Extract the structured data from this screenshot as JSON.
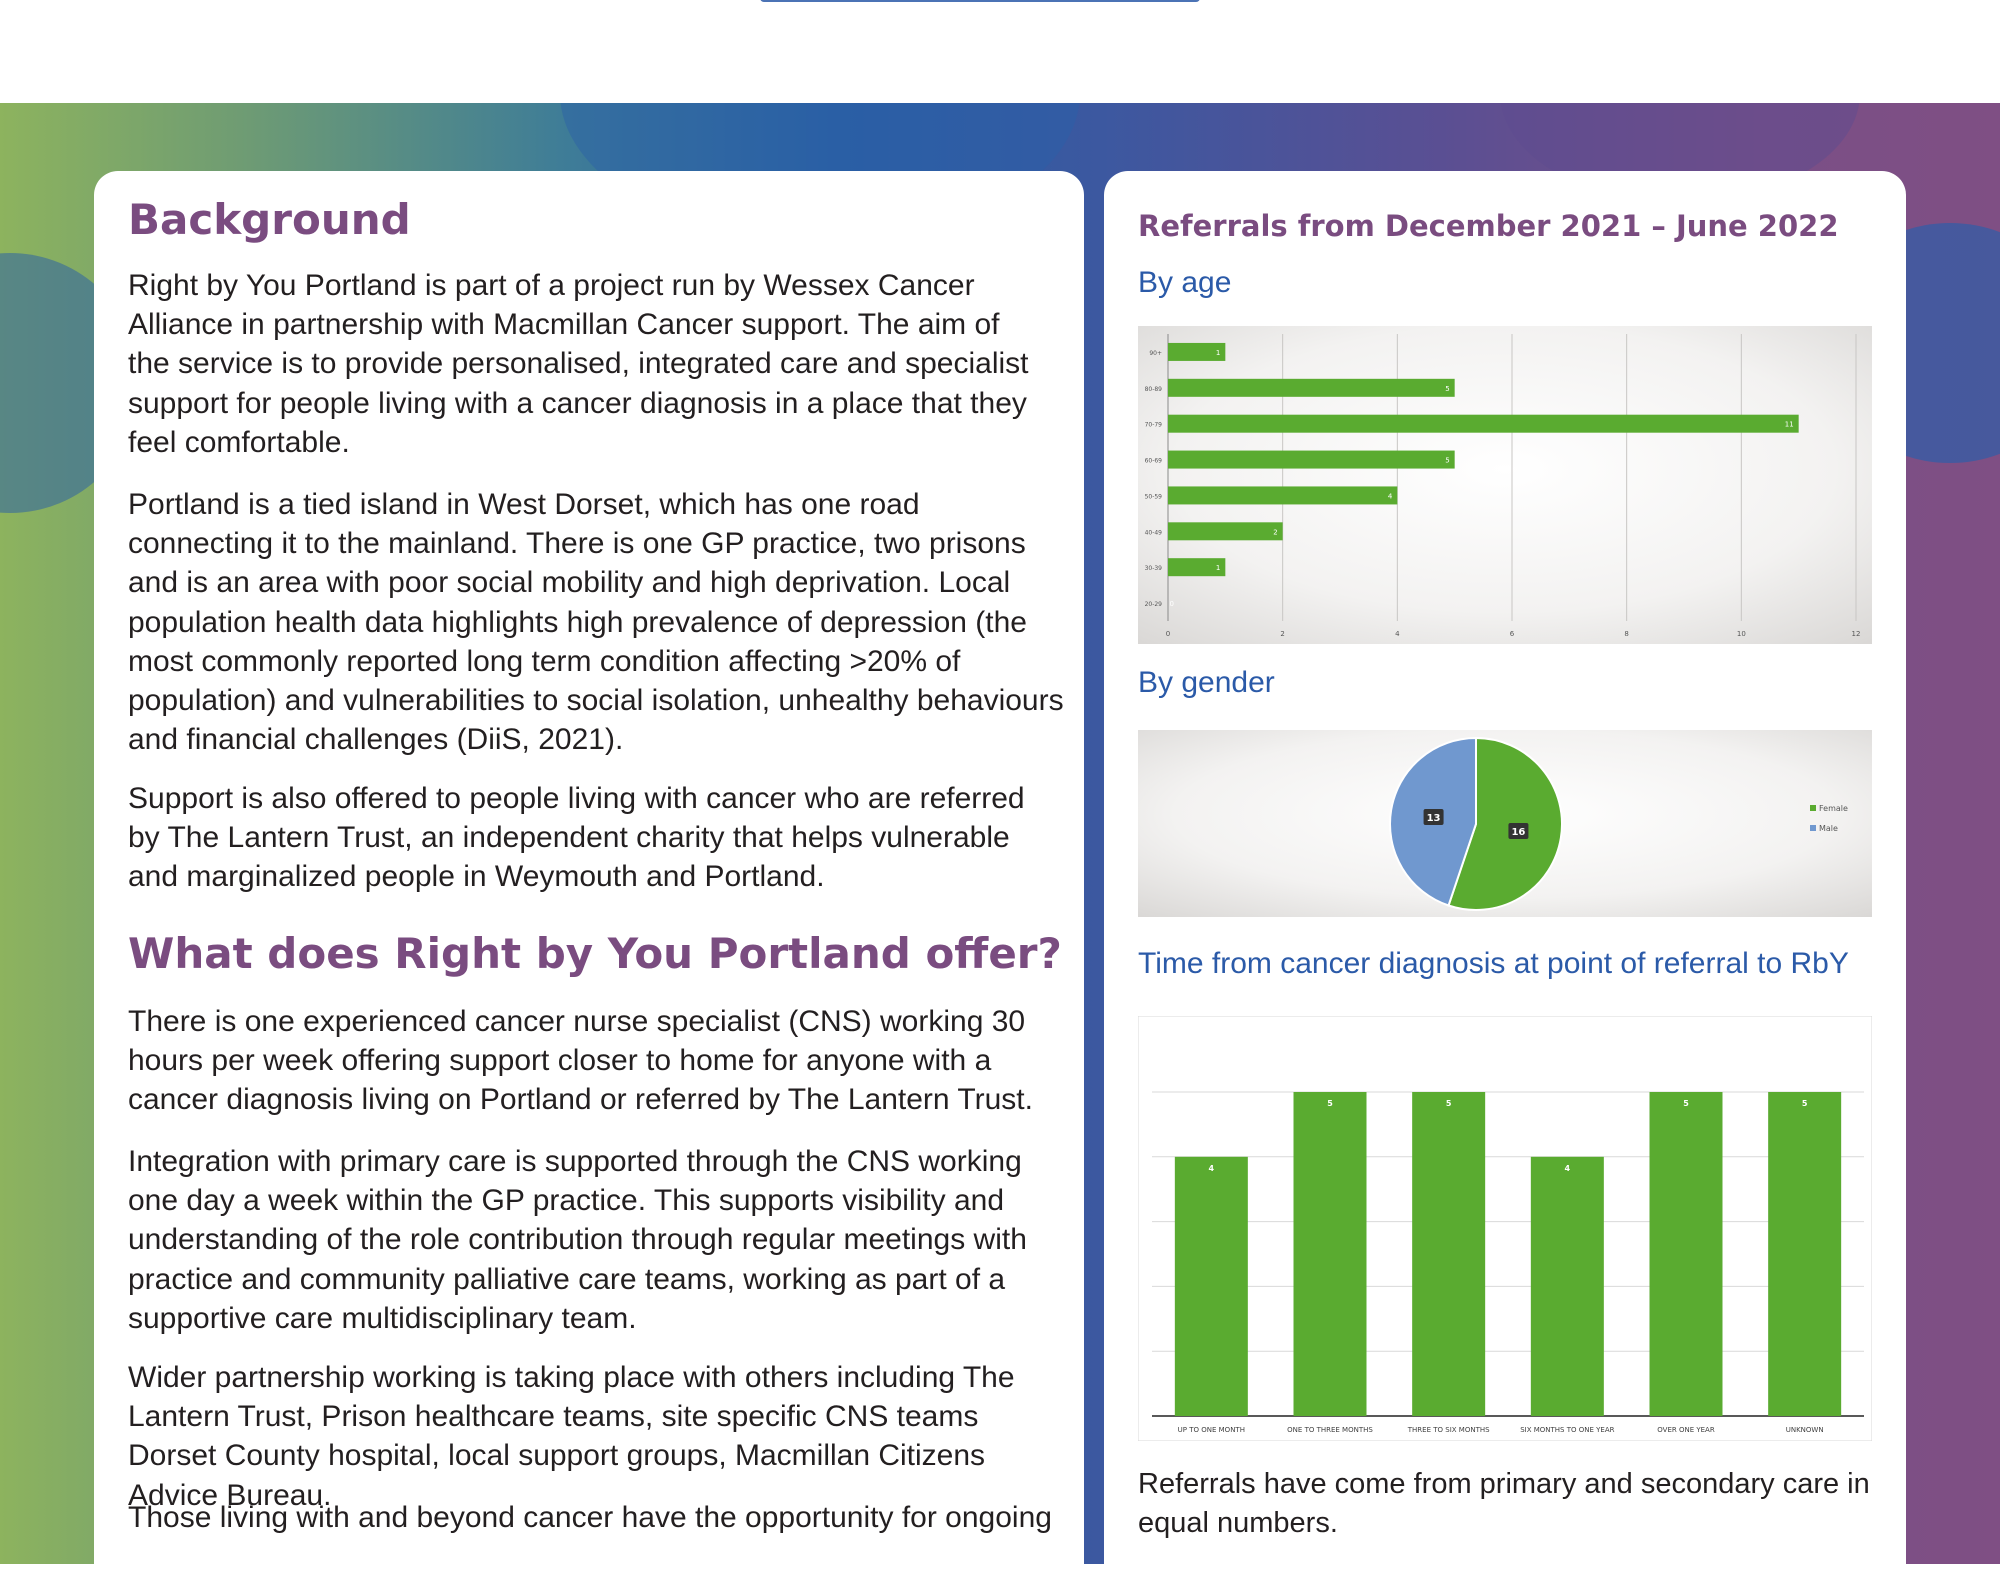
{
  "left": {
    "background_heading": "Background",
    "background_paragraphs": [
      "Right by You Portland is part of a project run by Wessex Cancer Alliance in partnership with Macmillan Cancer support. The aim of the service is to provide personalised, integrated care and specialist support for people living with a cancer diagnosis in a place that they feel comfortable.",
      "Portland is a tied island in West Dorset, which has one road connecting it to the mainland. There is one GP practice, two prisons and is an area with poor social mobility and high deprivation. Local population health data highlights high prevalence of depression (the most commonly reported long term condition affecting >20% of population) and vulnerabilities to social isolation, unhealthy behaviours and financial challenges (DiiS, 2021).",
      "Support is also offered to people living with cancer who are referred by The Lantern Trust, an independent charity that helps vulnerable and marginalized people in Weymouth and Portland."
    ],
    "offer_heading": "What does Right by You Portland offer?",
    "offer_paragraphs": [
      "There is one experienced cancer nurse specialist (CNS) working 30 hours per week offering support closer to home for anyone with a cancer diagnosis living on Portland or referred by The Lantern Trust.",
      "Integration with primary care is supported through the CNS working one day a week within the GP practice. This supports visibility and understanding of the role contribution through regular meetings with practice and community palliative care teams, working as part of a supportive care multidisciplinary team.",
      "Wider partnership working is taking place with others including The Lantern Trust, Prison healthcare teams, site specific CNS teams Dorset County hospital, local support groups, Macmillan Citizens Advice Bureau.",
      "Those living with and beyond cancer have the opportunity for ongoing"
    ]
  },
  "right": {
    "title": "Referrals from December 2021 – June 2022",
    "by_age_label": "By age",
    "by_gender_label": "By gender",
    "time_label": "Time from cancer diagnosis at point of referral to RbY",
    "footer_text": "Referrals have come from primary and secondary care in equal numbers."
  },
  "colors": {
    "heading_purple": "#7a4c80",
    "subheading_blue": "#2b5aa8",
    "bar_green": "#5aab30",
    "pie_blue": "#7098cf",
    "pie_green": "#5aab30"
  },
  "chart_data": [
    {
      "type": "bar",
      "orientation": "horizontal",
      "categories": [
        "90+",
        "80-89",
        "70-79",
        "60-69",
        "50-59",
        "40-49",
        "30-39",
        "20-29"
      ],
      "values": [
        1,
        5,
        11,
        5,
        4,
        2,
        1,
        0
      ],
      "value_labels": [
        "1",
        "5",
        "11",
        "5",
        "4",
        "2",
        "1",
        "0"
      ],
      "x_ticks": [
        "0",
        "2",
        "4",
        "6",
        "8",
        "10",
        "12"
      ],
      "xlim": [
        0,
        12
      ],
      "grid": true
    },
    {
      "type": "pie",
      "categories": [
        "Female",
        "Male"
      ],
      "values": [
        16,
        13
      ],
      "value_labels": [
        "16",
        "13"
      ],
      "legend": "right"
    },
    {
      "type": "bar",
      "categories": [
        "UP TO ONE MONTH",
        "ONE TO THREE MONTHS",
        "THREE TO SIX MONTHS",
        "SIX MONTHS TO ONE YEAR",
        "OVER ONE YEAR",
        "UNKNOWN"
      ],
      "values": [
        4,
        5,
        5,
        4,
        5,
        5
      ],
      "value_labels": [
        "4",
        "5",
        "5",
        "4",
        "5",
        "5"
      ],
      "ylim": [
        0,
        5
      ],
      "grid": true
    }
  ]
}
